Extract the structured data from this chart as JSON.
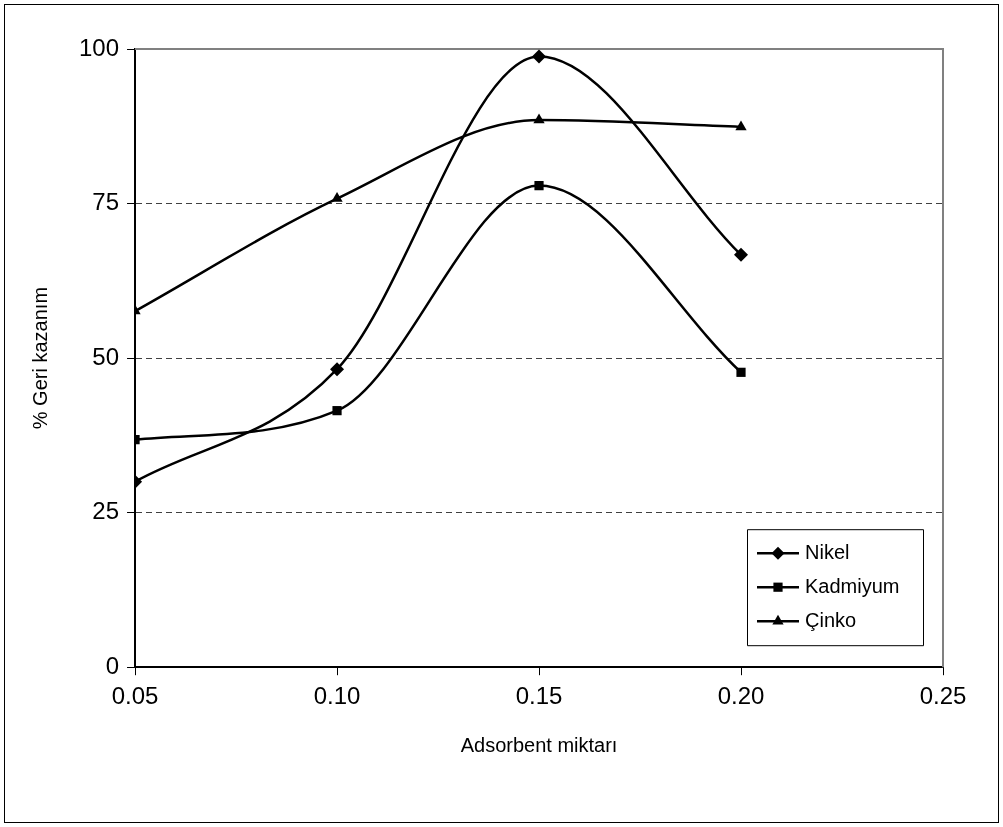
{
  "chart_data": {
    "type": "line",
    "xlabel": "Adsorbent miktarı",
    "ylabel": "% Geri kazanım",
    "xlim": [
      0.05,
      0.25
    ],
    "xticks": [
      {
        "value": 0.05,
        "label": "0.05"
      },
      {
        "value": 0.1,
        "label": "0.10"
      },
      {
        "value": 0.15,
        "label": "0.15"
      },
      {
        "value": 0.2,
        "label": "0.20"
      },
      {
        "value": 0.25,
        "label": "0.25"
      }
    ],
    "ylim": [
      0,
      100
    ],
    "yticks": [
      0,
      25,
      50,
      75,
      100
    ],
    "x": [
      0.05,
      0.1,
      0.15,
      0.2
    ],
    "series": [
      {
        "name": "Nikel",
        "color": "#000000",
        "marker": "diamond",
        "values": [
          30,
          48.2,
          98.8,
          66.7
        ]
      },
      {
        "name": "Kadmiyum",
        "color": "#000000",
        "marker": "square",
        "values": [
          36.8,
          41.5,
          77.9,
          47.7
        ]
      },
      {
        "name": "Çinko",
        "color": "#000000",
        "marker": "triangle",
        "values": [
          57.6,
          75.8,
          88.5,
          87.4
        ]
      }
    ],
    "grid": "y",
    "legend": "bottom right",
    "line_style": "solid"
  }
}
